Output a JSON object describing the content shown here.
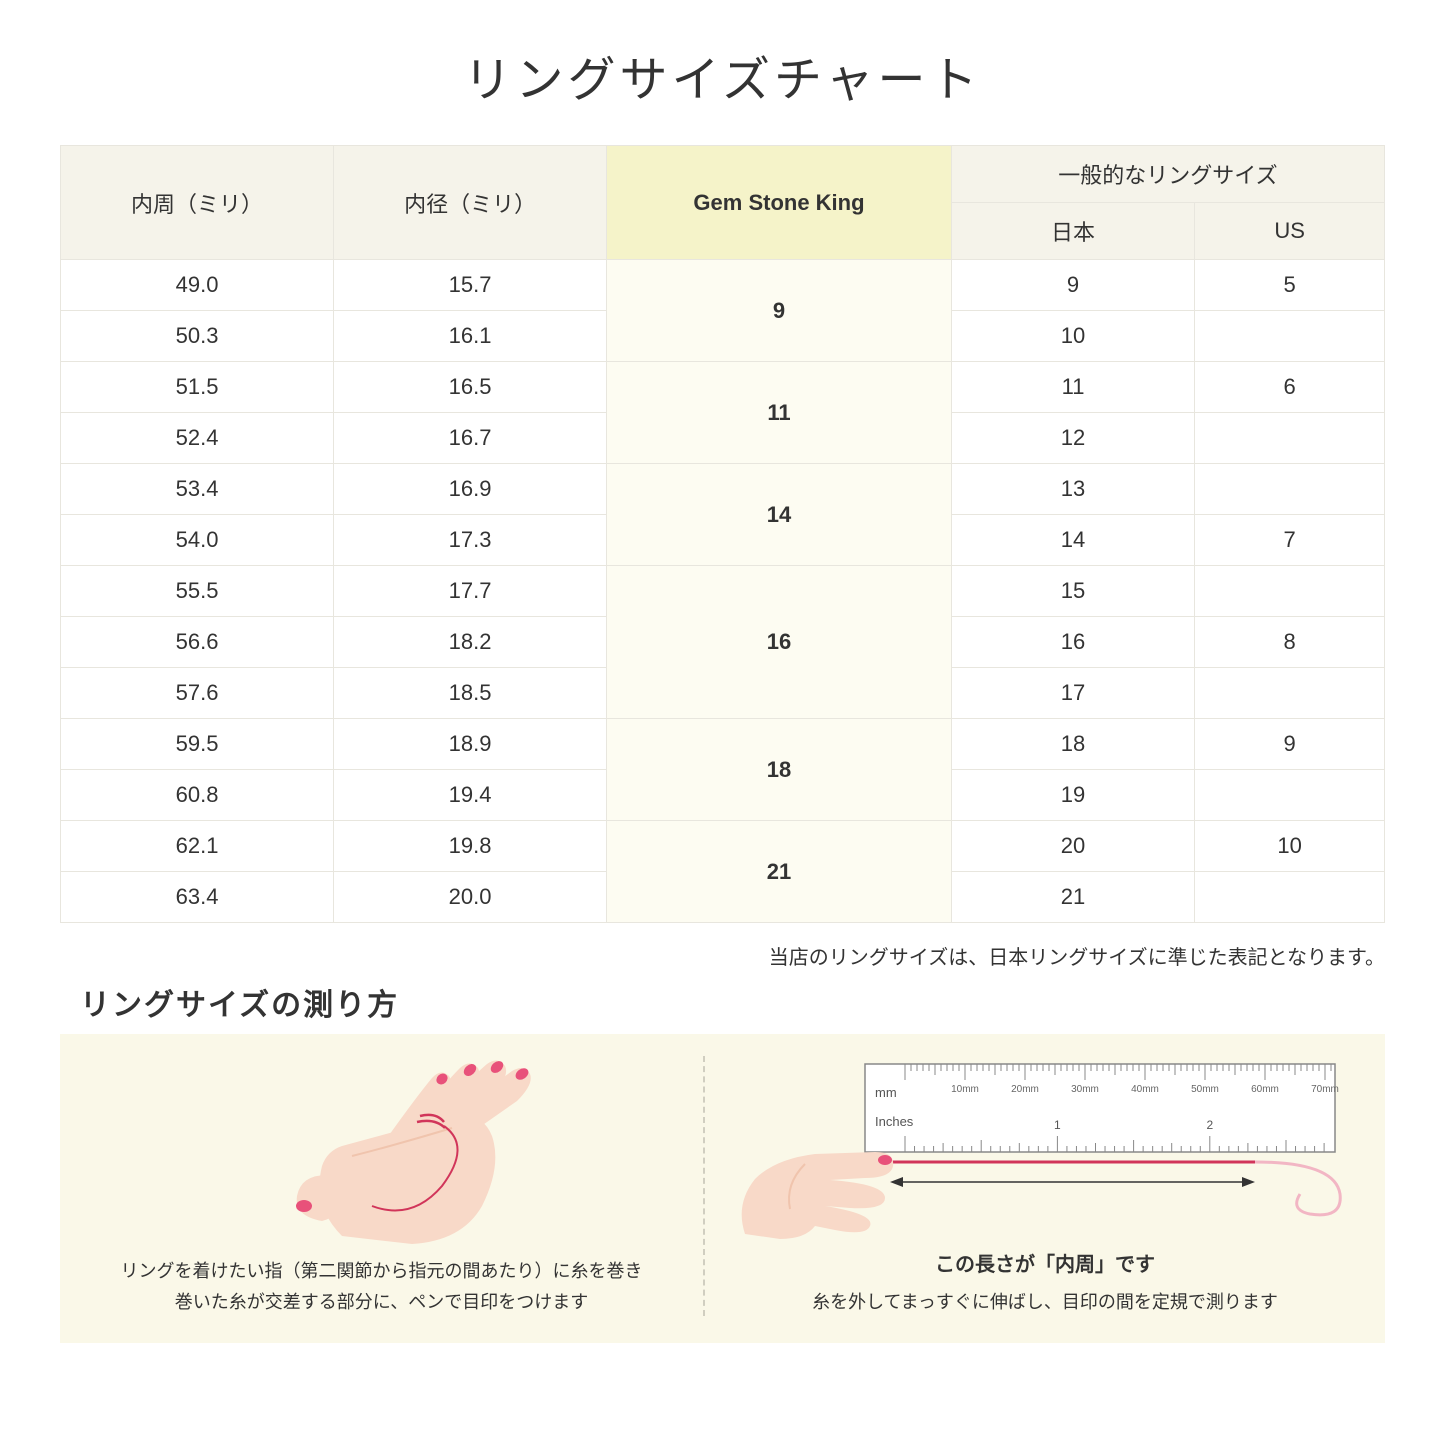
{
  "title": "リングサイズチャート",
  "headers": {
    "circumference": "内周（ミリ）",
    "diameter": "内径（ミリ）",
    "gsk": "Gem Stone King",
    "general": "一般的なリングサイズ",
    "japan": "日本",
    "us": "US"
  },
  "groups": [
    {
      "gsk": "9",
      "rows": [
        {
          "c": "49.0",
          "d": "15.7",
          "jp": "9",
          "us": "5"
        },
        {
          "c": "50.3",
          "d": "16.1",
          "jp": "10",
          "us": ""
        }
      ]
    },
    {
      "gsk": "11",
      "rows": [
        {
          "c": "51.5",
          "d": "16.5",
          "jp": "11",
          "us": "6"
        },
        {
          "c": "52.4",
          "d": "16.7",
          "jp": "12",
          "us": ""
        }
      ]
    },
    {
      "gsk": "14",
      "rows": [
        {
          "c": "53.4",
          "d": "16.9",
          "jp": "13",
          "us": ""
        },
        {
          "c": "54.0",
          "d": "17.3",
          "jp": "14",
          "us": "7"
        }
      ]
    },
    {
      "gsk": "16",
      "rows": [
        {
          "c": "55.5",
          "d": "17.7",
          "jp": "15",
          "us": ""
        },
        {
          "c": "56.6",
          "d": "18.2",
          "jp": "16",
          "us": "8"
        },
        {
          "c": "57.6",
          "d": "18.5",
          "jp": "17",
          "us": ""
        }
      ]
    },
    {
      "gsk": "18",
      "rows": [
        {
          "c": "59.5",
          "d": "18.9",
          "jp": "18",
          "us": "9"
        },
        {
          "c": "60.8",
          "d": "19.4",
          "jp": "19",
          "us": ""
        }
      ]
    },
    {
      "gsk": "21",
      "rows": [
        {
          "c": "62.1",
          "d": "19.8",
          "jp": "20",
          "us": "10"
        },
        {
          "c": "63.4",
          "d": "20.0",
          "jp": "21",
          "us": ""
        }
      ]
    }
  ],
  "note": "当店のリングサイズは、日本リングサイズに準じた表記となります。",
  "howto": {
    "title": "リングサイズの測り方",
    "left_caption": "リングを着けたい指（第二関節から指元の間あたり）に糸を巻き\n巻いた糸が交差する部分に、ペンで目印をつけます",
    "right_label_prefix": "この長さが",
    "right_label_quoted": "「内周」",
    "right_label_suffix": "です",
    "right_caption": "糸を外してまっすぐに伸ばし、目印の間を定規で測ります",
    "ruler": {
      "unit_mm": "mm",
      "unit_in": "Inches",
      "mm_ticks": [
        "10mm",
        "20mm",
        "30mm",
        "40mm",
        "50mm",
        "60mm",
        "70mm"
      ],
      "in_major": [
        "1",
        "2"
      ]
    }
  },
  "colors": {
    "header_bg": "#f5f3ea",
    "highlight_bg": "#f5f3c9",
    "gsk_cell_bg": "#fdfcf2",
    "border": "#e8e6de",
    "howto_bg": "#faf8e8",
    "skin": "#f8d9c8",
    "skin_dark": "#f0c4ad",
    "nail": "#e8517a",
    "thread": "#d1355a",
    "ruler_stroke": "#888888"
  }
}
